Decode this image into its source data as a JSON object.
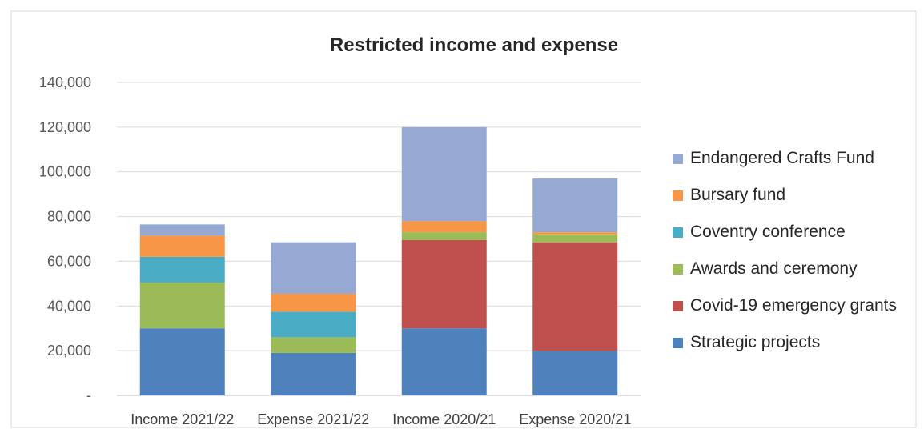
{
  "chart_data": {
    "type": "bar",
    "stacked": true,
    "title": "Restricted income and expense",
    "xlabel": "",
    "ylabel": "",
    "ylim": [
      0,
      140000
    ],
    "y_ticks": [
      0,
      20000,
      40000,
      60000,
      80000,
      100000,
      120000,
      140000
    ],
    "y_tick_labels": [
      "-",
      "20,000",
      "40,000",
      "60,000",
      "80,000",
      "100,000",
      "120,000",
      "140,000"
    ],
    "grid": true,
    "legend_position": "right",
    "categories": [
      "Income 2021/22",
      "Expense 2021/22",
      "Income 2020/21",
      "Expense 2020/21"
    ],
    "series": [
      {
        "name": "Strategic projects",
        "color": "#4F81BD",
        "values": [
          30000,
          19000,
          30000,
          20000
        ]
      },
      {
        "name": "Covid-19 emergency grants",
        "color": "#C0504D",
        "values": [
          0,
          0,
          39500,
          48500
        ]
      },
      {
        "name": "Awards and ceremony",
        "color": "#9BBB59",
        "values": [
          20500,
          7000,
          3500,
          3500
        ]
      },
      {
        "name": "Coventry conference",
        "color": "#4BACC6",
        "values": [
          11500,
          11500,
          0,
          0
        ]
      },
      {
        "name": "Bursary fund",
        "color": "#F79646",
        "values": [
          9500,
          8000,
          5000,
          1000
        ]
      },
      {
        "name": "Endangered Crafts Fund",
        "color": "#95A9D3",
        "values": [
          5000,
          23000,
          42000,
          24000
        ]
      }
    ]
  }
}
